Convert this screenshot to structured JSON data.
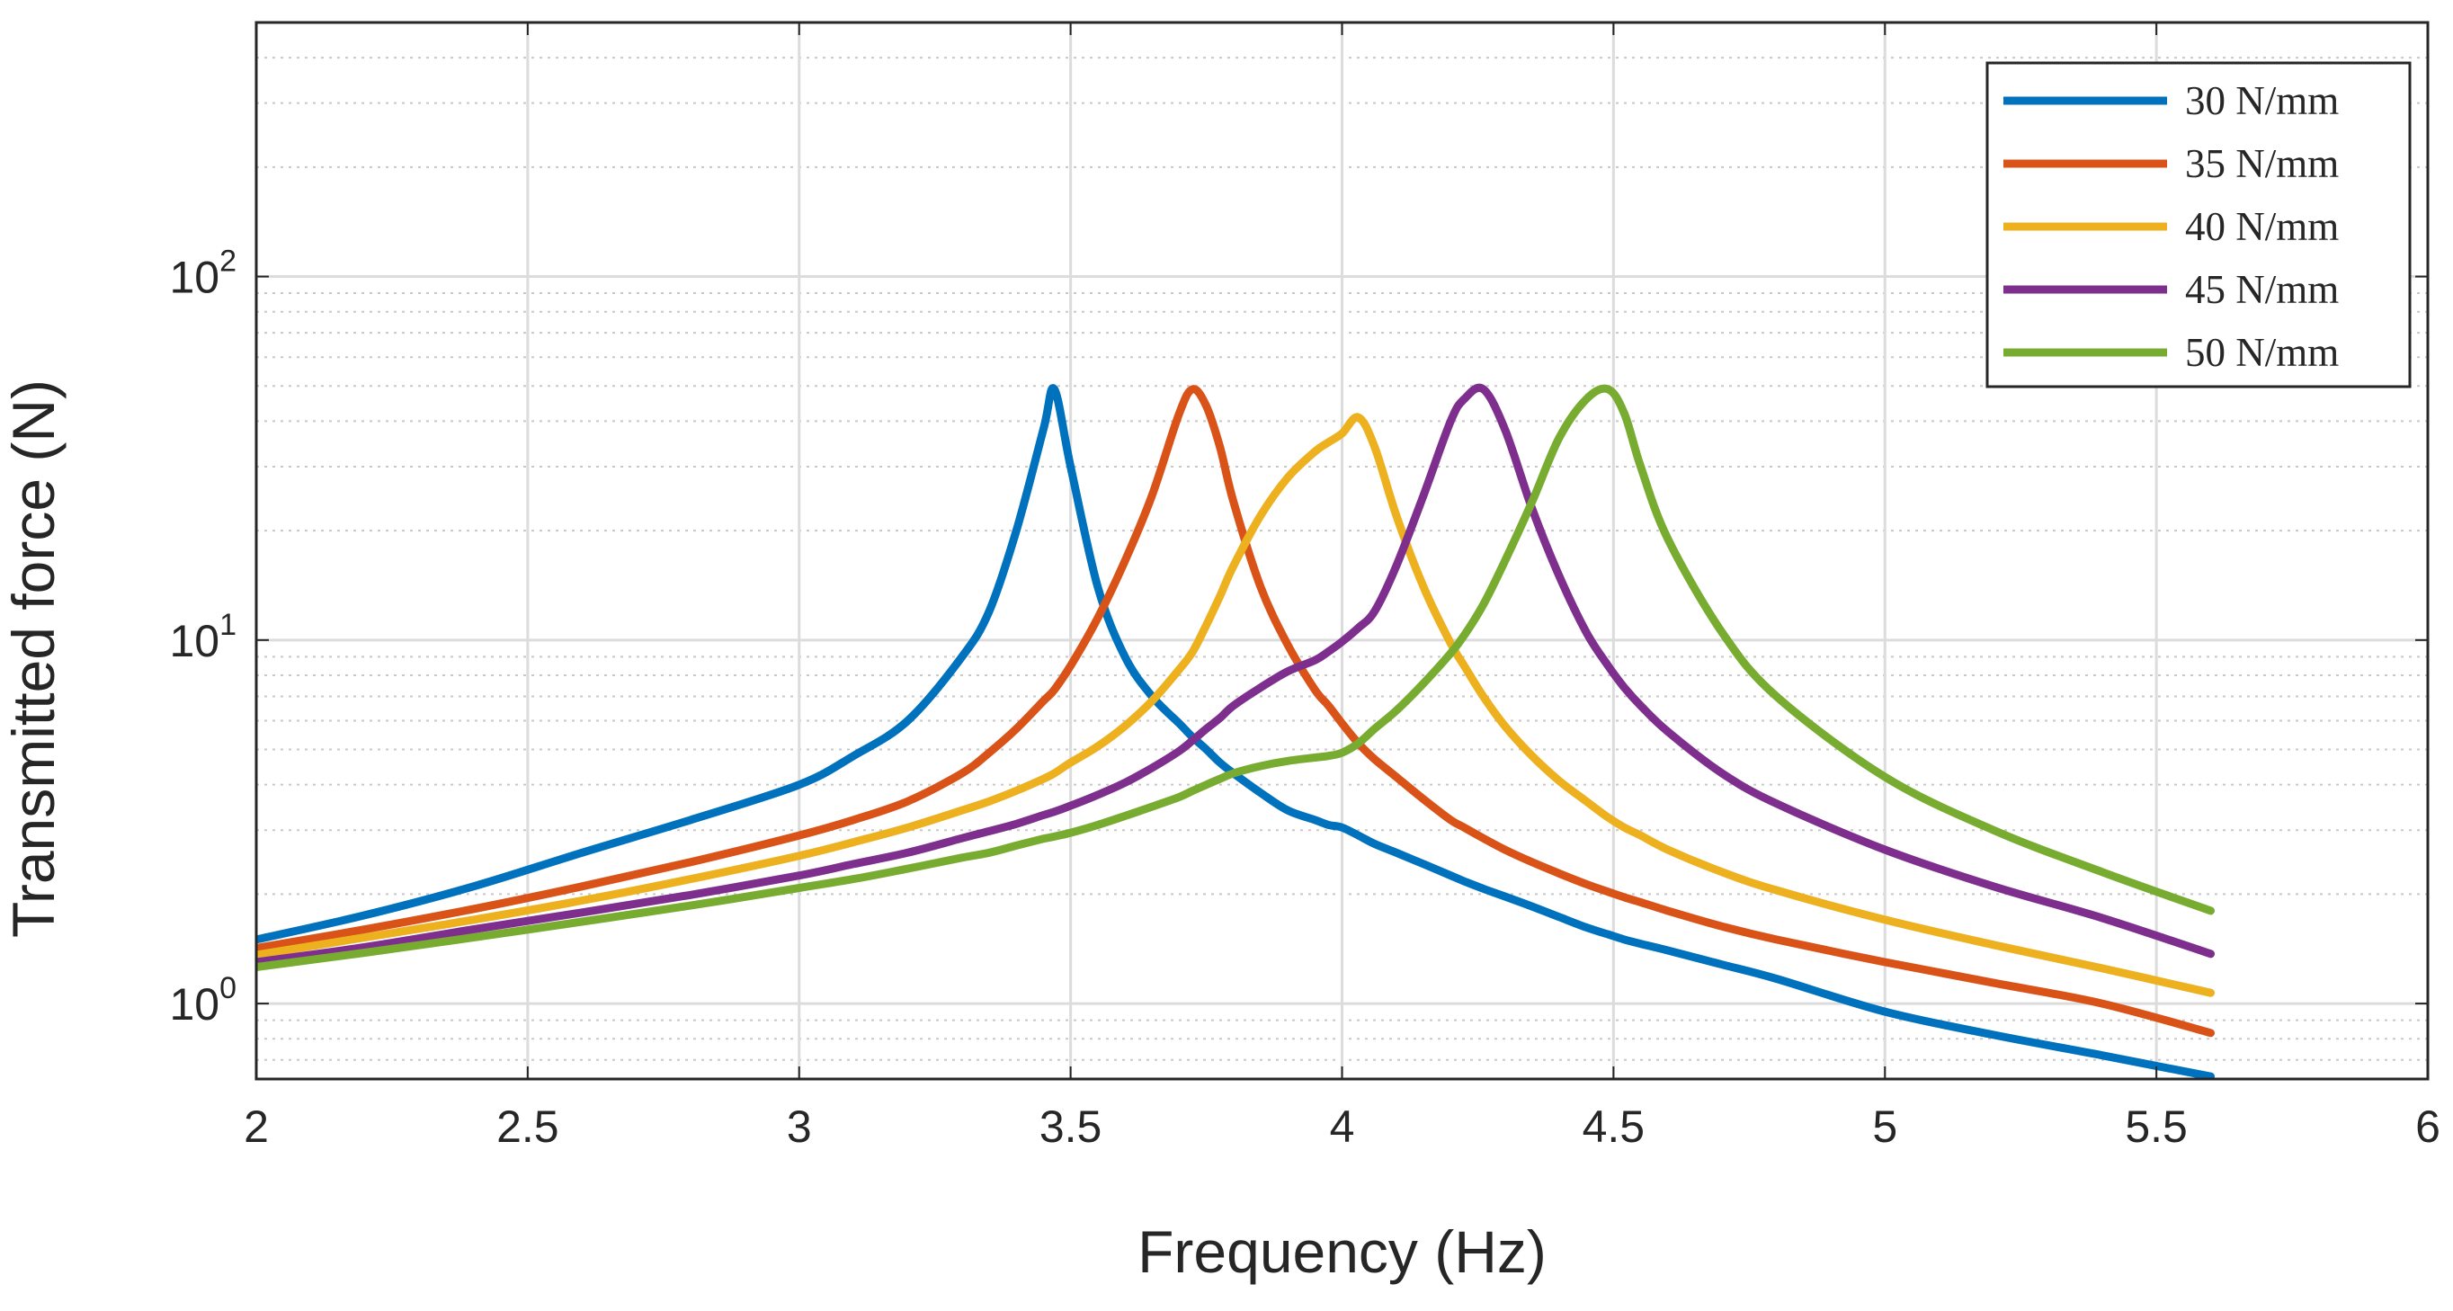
{
  "chart_data": {
    "type": "line",
    "title": "",
    "xlabel": "Frequency (Hz)",
    "ylabel": "Transmitted force (N)",
    "xscale": "linear",
    "yscale": "log",
    "xlim": [
      2,
      6
    ],
    "ylim": [
      0.62,
      500
    ],
    "grid": true,
    "minor_grid": true,
    "legend_position": "top-right",
    "x_ticks": [
      2,
      2.5,
      3,
      3.5,
      4,
      4.5,
      5,
      5.5,
      6
    ],
    "x_tick_labels": [
      "2",
      "2.5",
      "3",
      "3.5",
      "4",
      "4.5",
      "5",
      "5.5",
      "6"
    ],
    "y_ticks": [
      1,
      10,
      100
    ],
    "y_tick_labels": [
      {
        "base": "10",
        "exp": "0"
      },
      {
        "base": "10",
        "exp": "1"
      },
      {
        "base": "10",
        "exp": "2"
      }
    ],
    "x": [
      2.0,
      2.2,
      2.4,
      2.6,
      2.8,
      3.0,
      3.1,
      3.2,
      3.3,
      3.35,
      3.4,
      3.45,
      3.47,
      3.5,
      3.55,
      3.6,
      3.65,
      3.7,
      3.725,
      3.75,
      3.775,
      3.8,
      3.85,
      3.9,
      3.95,
      3.975,
      4.0,
      4.03,
      4.06,
      4.1,
      4.15,
      4.2,
      4.225,
      4.26,
      4.3,
      4.35,
      4.4,
      4.45,
      4.49,
      4.52,
      4.55,
      4.6,
      4.7,
      4.8,
      5.0,
      5.2,
      5.4,
      5.6
    ],
    "series": [
      {
        "name": "30 N/mm",
        "color": "#0072BD",
        "values": [
          1.5,
          1.75,
          2.1,
          2.6,
          3.2,
          4.0,
          4.8,
          6.0,
          9.0,
          12.0,
          20.0,
          38.0,
          49.0,
          30.0,
          14.0,
          9.0,
          7.0,
          5.9,
          5.4,
          5.0,
          4.6,
          4.3,
          3.8,
          3.4,
          3.2,
          3.1,
          3.05,
          2.9,
          2.75,
          2.6,
          2.42,
          2.25,
          2.17,
          2.07,
          1.97,
          1.85,
          1.73,
          1.62,
          1.55,
          1.5,
          1.46,
          1.4,
          1.28,
          1.17,
          0.95,
          0.82,
          0.72,
          0.63
        ]
      },
      {
        "name": "35 N/mm",
        "color": "#D95319",
        "values": [
          1.42,
          1.6,
          1.82,
          2.1,
          2.45,
          2.9,
          3.2,
          3.6,
          4.3,
          4.9,
          5.7,
          6.8,
          7.3,
          8.5,
          11.5,
          16.5,
          25.0,
          42.0,
          49.0,
          44.0,
          34.0,
          24.0,
          14.0,
          9.7,
          7.3,
          6.6,
          5.9,
          5.2,
          4.7,
          4.2,
          3.65,
          3.2,
          3.05,
          2.85,
          2.65,
          2.45,
          2.28,
          2.13,
          2.03,
          1.96,
          1.9,
          1.8,
          1.63,
          1.5,
          1.3,
          1.14,
          1.0,
          0.83
        ]
      },
      {
        "name": "40 N/mm",
        "color": "#EDB120",
        "values": [
          1.36,
          1.52,
          1.7,
          1.92,
          2.2,
          2.55,
          2.78,
          3.05,
          3.4,
          3.6,
          3.85,
          4.15,
          4.3,
          4.6,
          5.1,
          5.8,
          6.8,
          8.3,
          9.3,
          11.0,
          13.2,
          16.0,
          22.0,
          28.0,
          33.0,
          35.0,
          37.0,
          41.0,
          34.0,
          22.0,
          14.0,
          9.8,
          8.5,
          7.0,
          5.8,
          4.8,
          4.1,
          3.6,
          3.25,
          3.05,
          2.9,
          2.65,
          2.3,
          2.05,
          1.7,
          1.45,
          1.25,
          1.07
        ]
      },
      {
        "name": "45 N/mm",
        "color": "#7E2F8E",
        "values": [
          1.3,
          1.43,
          1.6,
          1.78,
          1.99,
          2.25,
          2.42,
          2.6,
          2.85,
          2.98,
          3.12,
          3.3,
          3.37,
          3.5,
          3.75,
          4.05,
          4.45,
          4.95,
          5.3,
          5.7,
          6.1,
          6.6,
          7.4,
          8.2,
          8.8,
          9.3,
          9.9,
          10.8,
          12.0,
          16.0,
          25.0,
          40.0,
          46.0,
          49.0,
          38.0,
          23.0,
          15.0,
          10.5,
          8.5,
          7.4,
          6.6,
          5.6,
          4.3,
          3.55,
          2.65,
          2.1,
          1.72,
          1.37
        ]
      },
      {
        "name": "50 N/mm",
        "color": "#77AC30",
        "values": [
          1.26,
          1.38,
          1.52,
          1.68,
          1.86,
          2.08,
          2.2,
          2.35,
          2.52,
          2.6,
          2.72,
          2.84,
          2.88,
          2.95,
          3.1,
          3.28,
          3.48,
          3.7,
          3.85,
          4.0,
          4.15,
          4.3,
          4.5,
          4.65,
          4.75,
          4.8,
          4.9,
          5.2,
          5.7,
          6.4,
          7.6,
          9.2,
          10.3,
          12.5,
          16.5,
          24.0,
          36.0,
          46.0,
          49.0,
          42.0,
          30.0,
          19.0,
          10.5,
          7.0,
          4.2,
          3.0,
          2.3,
          1.8
        ]
      }
    ]
  }
}
